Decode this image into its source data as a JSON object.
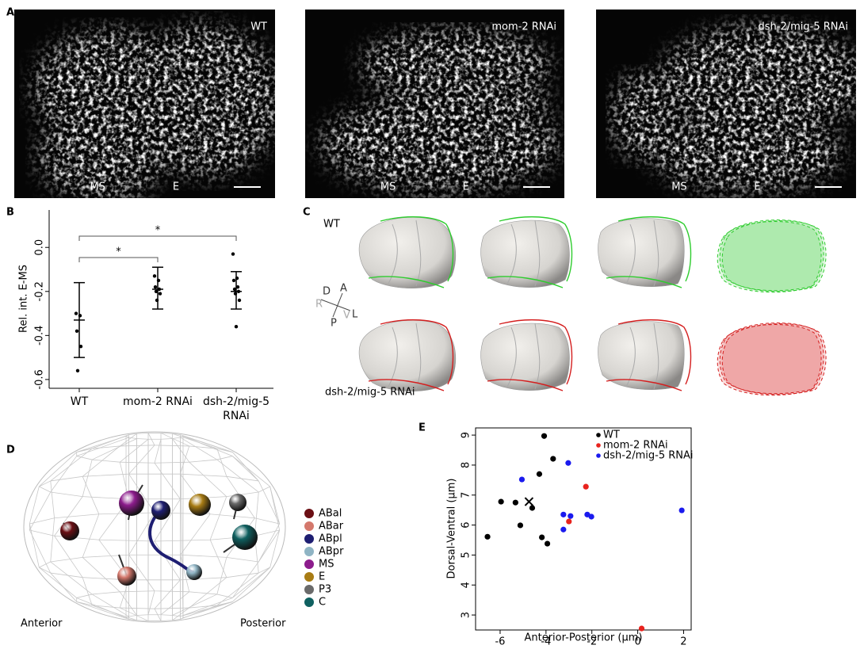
{
  "panel_labels": [
    "A",
    "B",
    "C",
    "D",
    "E"
  ],
  "panel_a": {
    "images": [
      {
        "title": "WT",
        "labels": [
          "MS",
          "E"
        ]
      },
      {
        "title": "mom-2 RNAi",
        "labels": [
          "MS",
          "E"
        ]
      },
      {
        "title": "dsh-2/mig-5 RNAi",
        "labels": [
          "MS",
          "E"
        ]
      }
    ]
  },
  "panel_c": {
    "rows": [
      "WT",
      "dsh-2/mig-5 RNAi"
    ],
    "axes": [
      "A",
      "D",
      "R",
      "L",
      "P",
      "V"
    ]
  },
  "panel_d": {
    "cells": [
      {
        "name": "ABal",
        "color": "#6b0f14"
      },
      {
        "name": "ABar",
        "color": "#d4786c"
      },
      {
        "name": "ABpl",
        "color": "#1e1e72"
      },
      {
        "name": "ABpr",
        "color": "#8fb4c4"
      },
      {
        "name": "MS",
        "color": "#8c1c8c"
      },
      {
        "name": "E",
        "color": "#a87c14"
      },
      {
        "name": "P3",
        "color": "#6a6a6a"
      },
      {
        "name": "C",
        "color": "#0f6060"
      }
    ],
    "directions": [
      "Anterior",
      "Posterior"
    ]
  },
  "chart_data": [
    {
      "type": "dot",
      "ylabel": "Rel. int. E-MS",
      "categories": [
        "WT",
        "mom-2 RNAi",
        "dsh-2/mig-5 RNAi"
      ],
      "points": [
        [
          -0.3,
          -0.31,
          -0.38,
          -0.45,
          -0.56
        ],
        [
          -0.13,
          -0.15,
          -0.18,
          -0.19,
          -0.2,
          -0.21,
          -0.24
        ],
        [
          -0.03,
          -0.14,
          -0.15,
          -0.18,
          -0.19,
          -0.2,
          -0.21,
          -0.24,
          -0.36
        ]
      ],
      "means": [
        -0.33,
        -0.19,
        -0.2
      ],
      "lower": [
        -0.5,
        -0.28,
        -0.28
      ],
      "upper": [
        -0.16,
        -0.09,
        -0.11
      ],
      "ylim": [
        -0.64,
        0.17
      ],
      "yticks": [
        {
          "value": 0,
          "label": "0.0"
        },
        -0.2,
        -0.4,
        -0.6
      ],
      "annotations": [
        "*",
        "*"
      ]
    },
    {
      "type": "scatter",
      "xlabel": "Anterior-Posterior (µm)",
      "ylabel": "Dorsal-Ventral (µm)",
      "xlim": [
        -7.07,
        2.33
      ],
      "ylim": [
        2.5,
        9.24
      ],
      "xticks": [
        -6,
        -4,
        -2,
        0,
        2
      ],
      "yticks": [
        3,
        4,
        5,
        6,
        7,
        8,
        9
      ],
      "legend": "upper right",
      "series": [
        {
          "name": "WT",
          "color": "#000000",
          "x": [
            -4.08,
            -3.69,
            -4.29,
            -5.96,
            -5.33,
            -4.6,
            -5.12,
            -6.55,
            -4.18,
            -3.94
          ],
          "y": [
            8.97,
            8.21,
            7.7,
            6.78,
            6.75,
            6.57,
            5.99,
            5.61,
            5.59,
            5.38
          ]
        },
        {
          "name": "mom-2 RNAi",
          "color": "#e8231e",
          "x": [
            -2.26,
            -3.0,
            0.17
          ],
          "y": [
            7.28,
            6.12,
            2.55
          ]
        },
        {
          "name": "dsh-2/mig-5 RNAi",
          "color": "#1a1aee",
          "x": [
            -5.05,
            -3.03,
            -3.24,
            -2.93,
            -3.24,
            -2.2,
            -2.02,
            1.92
          ],
          "y": [
            7.52,
            8.07,
            6.35,
            6.3,
            5.85,
            6.35,
            6.28,
            6.49
          ]
        }
      ],
      "marker": {
        "x": -4.74,
        "y": 6.78
      }
    }
  ]
}
